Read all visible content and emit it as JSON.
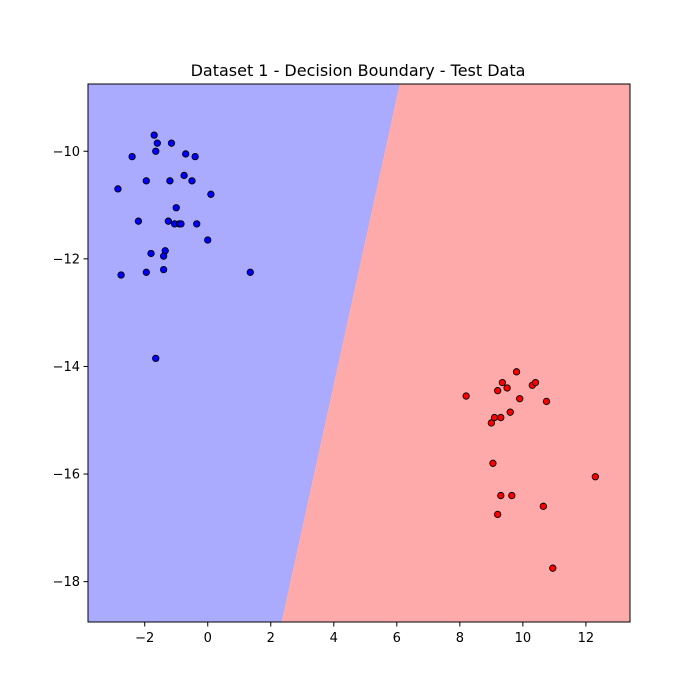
{
  "chart_data": {
    "type": "scatter",
    "title": "Dataset 1 - Decision Boundary - Test Data",
    "xlabel": "",
    "ylabel": "",
    "xlim": [
      -3.8,
      13.4
    ],
    "ylim": [
      -18.75,
      -8.75
    ],
    "x_ticks": [
      -2,
      0,
      2,
      4,
      6,
      8,
      10,
      12
    ],
    "y_ticks": [
      -18,
      -16,
      -14,
      -12,
      -10
    ],
    "grid": false,
    "legend": "none",
    "decision_boundary": {
      "points": [
        [
          2.35,
          -18.75
        ],
        [
          6.1,
          -8.75
        ]
      ],
      "left_region_color": "#aaaaff",
      "right_region_color": "#ffaaaa"
    },
    "series": [
      {
        "color": "#0000ff",
        "x": [
          -1.7,
          -1.6,
          -1.65,
          -2.4,
          -1.15,
          -0.7,
          -0.4,
          -2.85,
          -1.95,
          -1.2,
          -0.75,
          -0.5,
          0.1,
          -1.0,
          -2.2,
          -1.25,
          -1.05,
          -0.9,
          -0.85,
          -0.35,
          0.0,
          -1.35,
          -1.8,
          -1.4,
          -1.95,
          -1.4,
          -2.75,
          1.35,
          -1.65
        ],
        "y": [
          -9.7,
          -9.85,
          -10.0,
          -10.1,
          -9.85,
          -10.05,
          -10.1,
          -10.7,
          -10.55,
          -10.55,
          -10.45,
          -10.55,
          -10.8,
          -11.05,
          -11.3,
          -11.3,
          -11.35,
          -11.35,
          -11.35,
          -11.35,
          -11.65,
          -11.85,
          -11.9,
          -11.95,
          -12.25,
          -12.2,
          -12.3,
          -12.25,
          -13.85
        ]
      },
      {
        "color": "#ff0000",
        "x": [
          9.8,
          9.35,
          9.5,
          10.3,
          10.4,
          9.2,
          8.2,
          9.9,
          10.75,
          9.6,
          9.1,
          9.3,
          9.0,
          9.05,
          12.3,
          9.3,
          9.65,
          10.65,
          9.2,
          10.95
        ],
        "y": [
          -14.1,
          -14.3,
          -14.4,
          -14.35,
          -14.3,
          -14.45,
          -14.55,
          -14.6,
          -14.65,
          -14.85,
          -14.95,
          -14.95,
          -15.05,
          -15.8,
          -16.05,
          -16.4,
          -16.4,
          -16.6,
          -16.75,
          -17.75
        ]
      }
    ]
  }
}
